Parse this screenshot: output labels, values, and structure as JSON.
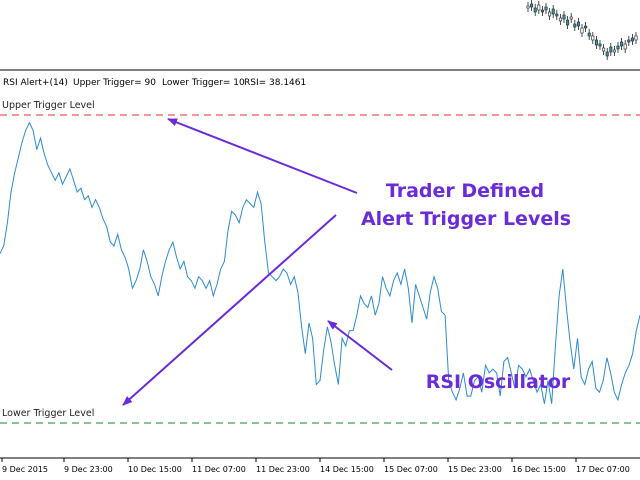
{
  "indicator_header": {
    "name": "RSI Alert+(14)",
    "upper_trigger": "Upper Trigger= 90",
    "lower_trigger": "Lower Trigger= 10",
    "rsi_value": "RSI=  38.1461"
  },
  "levels": {
    "upper_label": "Upper Trigger Level",
    "lower_label": "Lower Trigger Level",
    "upper_color": "#e03030",
    "lower_color": "#1a8a1a"
  },
  "annotations": {
    "trigger_levels_line1": "Trader Defined",
    "trigger_levels_line2": "Alert Trigger Levels",
    "oscillator": "RSI Oscillator",
    "annotation_color": "#6a2bd9"
  },
  "colors": {
    "rsi_line": "#2e8bd0",
    "candles": "#2a9ab0",
    "axis": "#000000"
  },
  "chart_data": {
    "type": "line",
    "title": "",
    "xlabel": "",
    "ylabel": "",
    "ylim": [
      0,
      100
    ],
    "x_tick_labels": [
      "9 Dec 2015",
      "9 Dec 23:00",
      "10 Dec 15:00",
      "11 Dec 07:00",
      "11 Dec 23:00",
      "14 Dec 15:00",
      "15 Dec 07:00",
      "15 Dec 23:00",
      "16 Dec 15:00",
      "17 Dec 07:00"
    ],
    "trigger_levels": {
      "upper": 90,
      "lower": 10
    },
    "series": [
      {
        "values": [
          54,
          56,
          62,
          70,
          75,
          79,
          83,
          86,
          88,
          86,
          81,
          84,
          80,
          77,
          75,
          73,
          75,
          72,
          74,
          76,
          73,
          70,
          71,
          68,
          69,
          66,
          68,
          66,
          63,
          61,
          57,
          56,
          59,
          55,
          53,
          50,
          45,
          47,
          50,
          55,
          52,
          48,
          46,
          43,
          48,
          52,
          55,
          57,
          53,
          50,
          52,
          48,
          47,
          45,
          48,
          47,
          45,
          47,
          43,
          46,
          50,
          52,
          60,
          65,
          64,
          62,
          66,
          68,
          67,
          66,
          70,
          67,
          57,
          49,
          48,
          47,
          48,
          50,
          49,
          46,
          48,
          44,
          35,
          28,
          36,
          32,
          20,
          21,
          29,
          35,
          31,
          25,
          20,
          32,
          30,
          34,
          34,
          38,
          43,
          41,
          40,
          43,
          38,
          41,
          48,
          45,
          43,
          47,
          49,
          46,
          50,
          45,
          36,
          46,
          43,
          40,
          37,
          44,
          48,
          45,
          39,
          38,
          21,
          18,
          16,
          19,
          23,
          17,
          17,
          21,
          22,
          18,
          25,
          23,
          24,
          23,
          17,
          26,
          27,
          23,
          19,
          25,
          24,
          22,
          24,
          21,
          18,
          20,
          15,
          21,
          15,
          30,
          43,
          50,
          40,
          31,
          24,
          32,
          22,
          20,
          24,
          26,
          19,
          18,
          21,
          27,
          23,
          18,
          16,
          20,
          23,
          25,
          28,
          34,
          38
        ]
      }
    ]
  }
}
